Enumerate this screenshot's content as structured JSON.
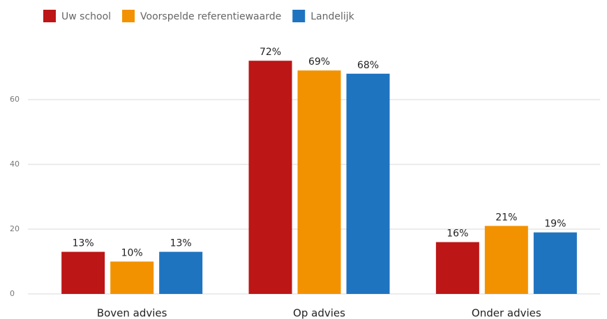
{
  "chart_data": {
    "type": "bar",
    "categories": [
      "Boven advies",
      "Op advies",
      "Onder advies"
    ],
    "series": [
      {
        "name": "Uw school",
        "color": "#bc1616",
        "values": [
          13,
          72,
          16
        ],
        "value_labels": [
          "13%",
          "72%",
          "16%"
        ]
      },
      {
        "name": "Voorspelde referentiewaarde",
        "color": "#f39200",
        "values": [
          10,
          69,
          21
        ],
        "value_labels": [
          "10%",
          "69%",
          "21%"
        ]
      },
      {
        "name": "Landelijk",
        "color": "#1f74c0",
        "values": [
          13,
          68,
          19
        ],
        "value_labels": [
          "13%",
          "68%",
          "19%"
        ]
      }
    ],
    "ylim": [
      0,
      80
    ],
    "yticks": [
      0,
      20,
      40,
      60
    ],
    "grid": true,
    "legend": "top-left"
  }
}
